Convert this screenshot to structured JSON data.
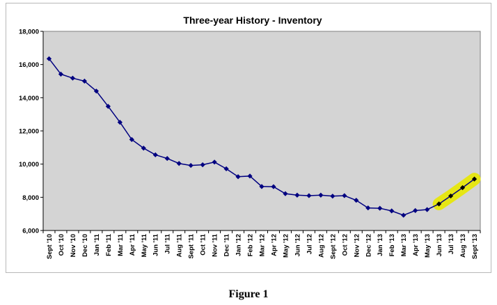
{
  "figure_caption": "Figure 1",
  "chart_data": {
    "type": "line",
    "title": "Three-year History - Inventory",
    "xlabel": "",
    "ylabel": "",
    "ylim": [
      6000,
      18000
    ],
    "ytick_step": 2000,
    "y_tick_labels": [
      "6,000",
      "8,000",
      "10,000",
      "12,000",
      "14,000",
      "16,000",
      "18,000"
    ],
    "grid": false,
    "legend": "none",
    "plot_background": "#d4d4d4",
    "line_color": "#000080",
    "highlight_color": "#e8e800",
    "highlight_range": [
      "Jun '13",
      "Sept '13"
    ],
    "categories": [
      "Sept '10",
      "Oct '10",
      "Nov '10",
      "Dec '10",
      "Jan '11",
      "Feb '11",
      "Mar '11",
      "Apr '11",
      "May '11",
      "Jun '11",
      "Jul '11",
      "Aug '11",
      "Sept '11",
      "Oct '11",
      "Nov '11",
      "Dec '11",
      "Jan '12",
      "Feb '12",
      "Mar '12",
      "Apr '12",
      "May '12",
      "Jun '12",
      "Jul '12",
      "Aug '12",
      "Sept '12",
      "Oct '12",
      "Nov '12",
      "Dec '12",
      "Jan '13",
      "Feb '13",
      "Mar '13",
      "Apr '13",
      "May '13",
      "Jun '13",
      "Jul '13",
      "Aug '13",
      "Sept '13"
    ],
    "series": [
      {
        "values": [
          16350,
          15420,
          15180,
          15000,
          14400,
          13480,
          12520,
          11480,
          10960,
          10560,
          10340,
          10040,
          9920,
          9960,
          10120,
          9720,
          9240,
          9280,
          8650,
          8640,
          8220,
          8130,
          8100,
          8130,
          8070,
          8100,
          7820,
          7360,
          7340,
          7180,
          6920,
          7200,
          7260,
          7600,
          8080,
          8580,
          9100
        ]
      }
    ]
  }
}
